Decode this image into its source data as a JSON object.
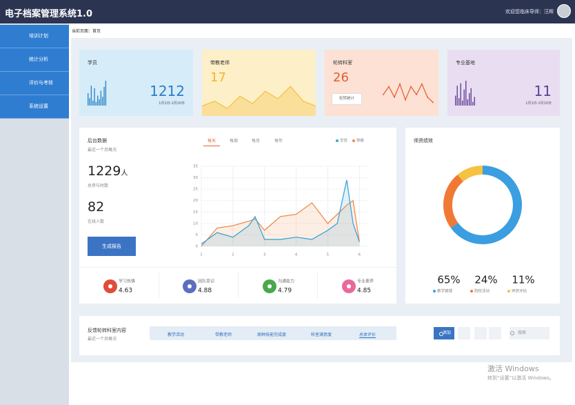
{
  "header": {
    "title": "电子档案管理系统1.0",
    "welcome": "欢迎您临床导师：汪辉"
  },
  "sidebar": {
    "items": [
      "培训计划",
      "统计分析",
      "评价与考核",
      "系统设置"
    ]
  },
  "breadcrumb": "当前页面：首页",
  "cards": [
    {
      "title": "学员",
      "value": 1212,
      "date": "1月1日-1月10日"
    },
    {
      "title": "带教老师",
      "value": 17
    },
    {
      "title": "轮转科室",
      "value": 26,
      "button": "轮转统计"
    },
    {
      "title": "专业基地",
      "value": 11,
      "date": "1月1日-1月10日"
    }
  ],
  "overview": {
    "title": "后台数据",
    "subtitle": "最近一个月概况",
    "tabs": [
      "每天",
      "每周",
      "每月",
      "每年"
    ],
    "total": 1229,
    "total_unit": "人",
    "total_label": "总参与时数",
    "online": 82,
    "online_label": "在线人数",
    "button": "生成报告",
    "stats": [
      {
        "label": "学习热情",
        "value": 4.63
      },
      {
        "label": "团队意识",
        "value": 4.88
      },
      {
        "label": "沟通能力",
        "value": 4.79
      },
      {
        "label": "专业素养",
        "value": 4.85
      }
    ]
  },
  "performance": {
    "title": "师资绩效"
  },
  "feedback": {
    "title": "反馈轮转科室内容",
    "subtitle": "最近一个月概况",
    "tabs": [
      "教学活动",
      "带教老师",
      "病种技能完成度",
      "科室满意度",
      "总体评价"
    ],
    "add_button": "添加",
    "search": "搜索"
  },
  "watermark": {
    "line1": "激活 Windows",
    "line2": "转到“设置”以激活 Windows。"
  },
  "chart_data": [
    {
      "type": "bar",
      "values": [
        10,
        6,
        16,
        4,
        14,
        3,
        8,
        5,
        12,
        7,
        15,
        20
      ],
      "color": "#2f86c8",
      "ylim": [
        0,
        20
      ]
    },
    {
      "type": "area",
      "values": [
        4,
        6,
        3,
        8,
        5,
        10,
        7,
        12,
        6,
        4
      ],
      "color": "#f3c046",
      "ylim": [
        0,
        14
      ]
    },
    {
      "type": "line",
      "values": [
        5,
        8,
        4,
        9,
        3,
        8,
        5,
        9,
        4,
        2
      ],
      "color": "#e2633a",
      "ylim": [
        0,
        10
      ]
    },
    {
      "type": "bar",
      "values": [
        8,
        16,
        6,
        18,
        4,
        13,
        20,
        5,
        10,
        14,
        3,
        7
      ],
      "color": "#6a4ba0",
      "ylim": [
        0,
        20
      ]
    },
    {
      "type": "line",
      "x": [
        1,
        1.5,
        2,
        2.5,
        2.7,
        3,
        3.5,
        4,
        4.5,
        5,
        5.3,
        5.6,
        5.8,
        6
      ],
      "series": [
        {
          "name": "学员",
          "color": "#3aa6d8",
          "values": [
            1,
            6,
            4,
            9,
            13,
            3,
            3,
            4,
            3,
            7,
            10,
            29,
            10,
            2
          ]
        },
        {
          "name": "带教",
          "color": "#f08a4b",
          "values": [
            0,
            8,
            9,
            11,
            12,
            7,
            13,
            14,
            19,
            10,
            14,
            18,
            20,
            2
          ]
        }
      ],
      "xlim": [
        1,
        6.3
      ],
      "xticks": [
        1,
        2,
        3,
        4,
        5,
        6
      ],
      "ylim": [
        0,
        35
      ],
      "yticks": [
        0,
        5,
        10,
        15,
        20,
        25,
        30,
        35
      ],
      "grid": true
    },
    {
      "type": "pie",
      "categories": [
        "教学管理",
        "院校活动",
        "师资评估"
      ],
      "values": [
        65,
        24,
        11
      ],
      "value_labels": [
        "65%",
        "24%",
        "11%"
      ],
      "colors": [
        "#3a9ee0",
        "#f07a35",
        "#f5c242"
      ]
    }
  ]
}
